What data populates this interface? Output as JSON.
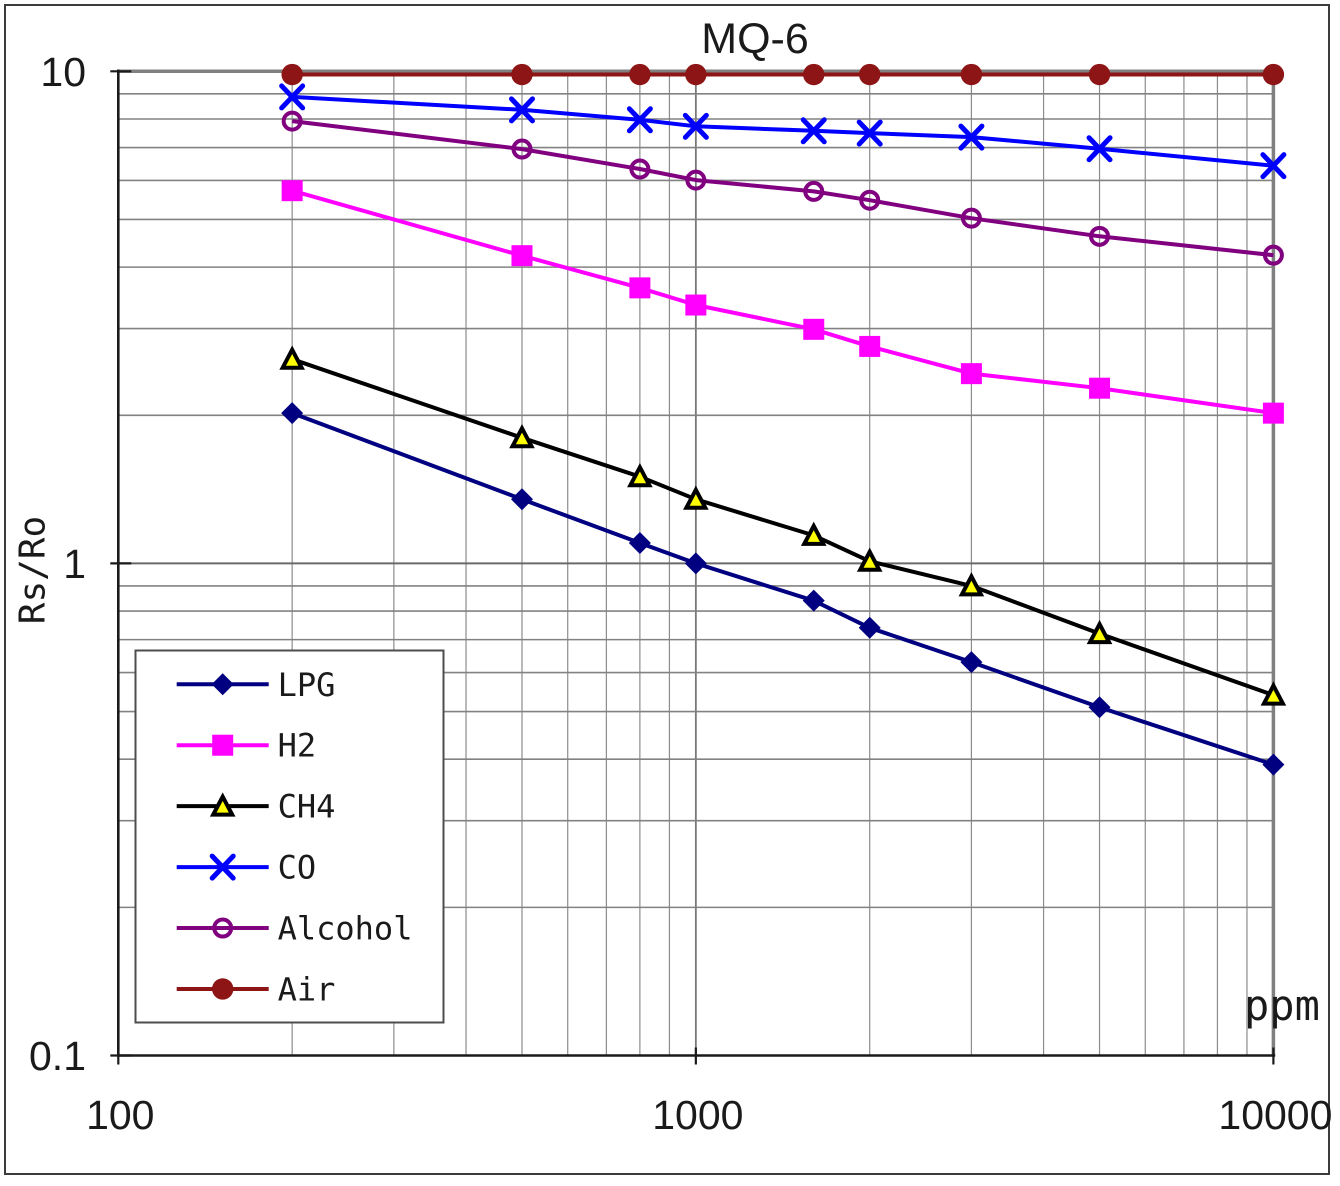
{
  "chart_data": {
    "type": "line",
    "title": "MQ-6",
    "ylabel": "Rs/Ro",
    "xlabel": "ppm",
    "x_scale": "log",
    "y_scale": "log",
    "xlim": [
      100,
      10000
    ],
    "ylim": [
      0.1,
      10
    ],
    "grid": "both-log-minor-and-major",
    "legend_position": "lower-left-inside",
    "x_ticks": [
      {
        "value": 100,
        "label": "100"
      },
      {
        "value": 1000,
        "label": "1000"
      },
      {
        "value": 10000,
        "label": "10000"
      }
    ],
    "y_ticks": [
      {
        "value": 10,
        "label": "10"
      },
      {
        "value": 1,
        "label": "1"
      },
      {
        "value": 0.1,
        "label": "0.1"
      }
    ],
    "x": [
      200,
      500,
      800,
      1000,
      1600,
      2000,
      3000,
      5000,
      10000
    ],
    "series": [
      {
        "name": "LPG",
        "marker": "diamond",
        "color": "#000080",
        "values": [
          2.02,
          1.35,
          1.1,
          1.0,
          0.84,
          0.74,
          0.63,
          0.51,
          0.39
        ]
      },
      {
        "name": "H2",
        "marker": "square",
        "color": "#ff00ff",
        "values": [
          5.72,
          4.22,
          3.63,
          3.35,
          2.99,
          2.76,
          2.43,
          2.27,
          2.02
        ]
      },
      {
        "name": "CH4",
        "marker": "triangle",
        "color": "#000000",
        "marker_fill": "#ffff00",
        "values": [
          2.6,
          1.8,
          1.5,
          1.35,
          1.14,
          1.01,
          0.9,
          0.72,
          0.54
        ]
      },
      {
        "name": "CO",
        "marker": "x-cross",
        "color": "#0000ff",
        "values": [
          8.87,
          8.35,
          7.97,
          7.73,
          7.57,
          7.49,
          7.35,
          6.96,
          6.43
        ]
      },
      {
        "name": "Alcohol",
        "marker": "open-circle",
        "color": "#800080",
        "values": [
          7.92,
          6.95,
          6.33,
          6.01,
          5.7,
          5.47,
          5.03,
          4.62,
          4.23
        ]
      },
      {
        "name": "Air",
        "marker": "dot",
        "color": "#8e1515",
        "values": [
          9.85,
          9.85,
          9.85,
          9.85,
          9.85,
          9.85,
          9.85,
          9.85,
          9.85
        ]
      }
    ],
    "colors": {
      "grid_minor_h": "#828282",
      "grid_minor_v": "#8c8c8c",
      "grid_major": "#6a6a6a",
      "grid_edge": "#808080",
      "axis": "#1a1a1a",
      "legend_border": "#4d4d4d",
      "text": "#1a1a1a",
      "background": "#ffffff"
    }
  }
}
